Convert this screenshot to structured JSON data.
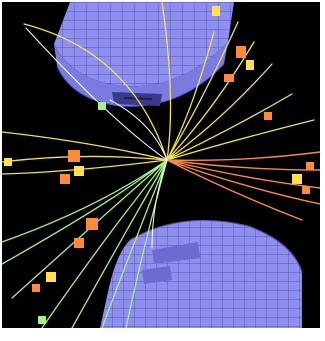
{
  "colors": {
    "background": "#000000",
    "detector": "#8f8ff0",
    "detector_grid": "#5454b8",
    "detector_dark": "#3a3a8a",
    "track_yellow": "#f2e05a",
    "track_orange": "#f58a4a",
    "track_green": "#a6f08a",
    "track_white": "#ffffff",
    "hit_orange": "#ff8a3a",
    "hit_yellow": "#ffe050"
  }
}
